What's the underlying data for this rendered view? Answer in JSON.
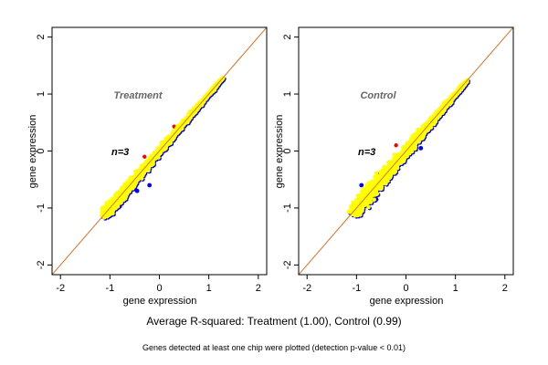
{
  "chart_data": [
    {
      "type": "scatter",
      "title": "Treatment",
      "annotation": "n=3",
      "xlabel": "gene expression",
      "ylabel": "gene expression",
      "xlim": [
        -2.17,
        2.17
      ],
      "ylim": [
        -2.17,
        2.17
      ],
      "xticks": [
        "-2",
        "-1",
        "0",
        "1",
        "2"
      ],
      "yticks": [
        "-2",
        "-1",
        "0",
        "1",
        "2"
      ],
      "reference_line": {
        "slope": 1,
        "intercept": 0,
        "color": "#e07020"
      },
      "cloud": {
        "x_range": [
          -1.1,
          1.25
        ],
        "spread_low": 0.18,
        "spread_high": 0.03
      },
      "blue_outliers": [
        [
          -0.2,
          -0.6
        ],
        [
          -1.0,
          -1.13
        ],
        [
          -0.8,
          -0.97
        ],
        [
          -0.45,
          -0.7
        ],
        [
          -0.3,
          -0.35
        ]
      ],
      "red_points": [
        [
          -1.12,
          -1.03
        ],
        [
          0.3,
          0.43
        ],
        [
          -0.3,
          -0.1
        ]
      ],
      "colors": {
        "cloud": "#ffff00",
        "under": "#0000ff",
        "red": "#ff0000"
      }
    },
    {
      "type": "scatter",
      "title": "Control",
      "annotation": "n=3",
      "xlabel": "gene expression",
      "ylabel": "gene expression",
      "xlim": [
        -2.17,
        2.17
      ],
      "ylim": [
        -2.17,
        2.17
      ],
      "xticks": [
        "-2",
        "-1",
        "0",
        "1",
        "2"
      ],
      "yticks": [
        "-2",
        "-1",
        "0",
        "1",
        "2"
      ],
      "reference_line": {
        "slope": 1,
        "intercept": 0,
        "color": "#e07020"
      },
      "cloud": {
        "x_range": [
          -1.05,
          1.2
        ],
        "spread_low": 0.25,
        "spread_high": 0.05
      },
      "blue_outliers": [
        [
          0.45,
          0.45
        ],
        [
          0.4,
          0.3
        ],
        [
          -0.9,
          -0.6
        ],
        [
          -0.6,
          -0.85
        ],
        [
          0.3,
          0.05
        ],
        [
          -1.0,
          -0.95
        ]
      ],
      "red_points": [
        [
          -1.05,
          -1.03
        ],
        [
          -0.2,
          0.1
        ]
      ],
      "colors": {
        "cloud": "#ffff00",
        "under": "#0000ff",
        "red": "#ff0000"
      }
    }
  ],
  "footer": {
    "main_title": "Average R-squared: Treatment (1.00), Control (0.99)",
    "subtitle": "Genes detected at least one chip were plotted (detection p-value < 0.01)"
  }
}
